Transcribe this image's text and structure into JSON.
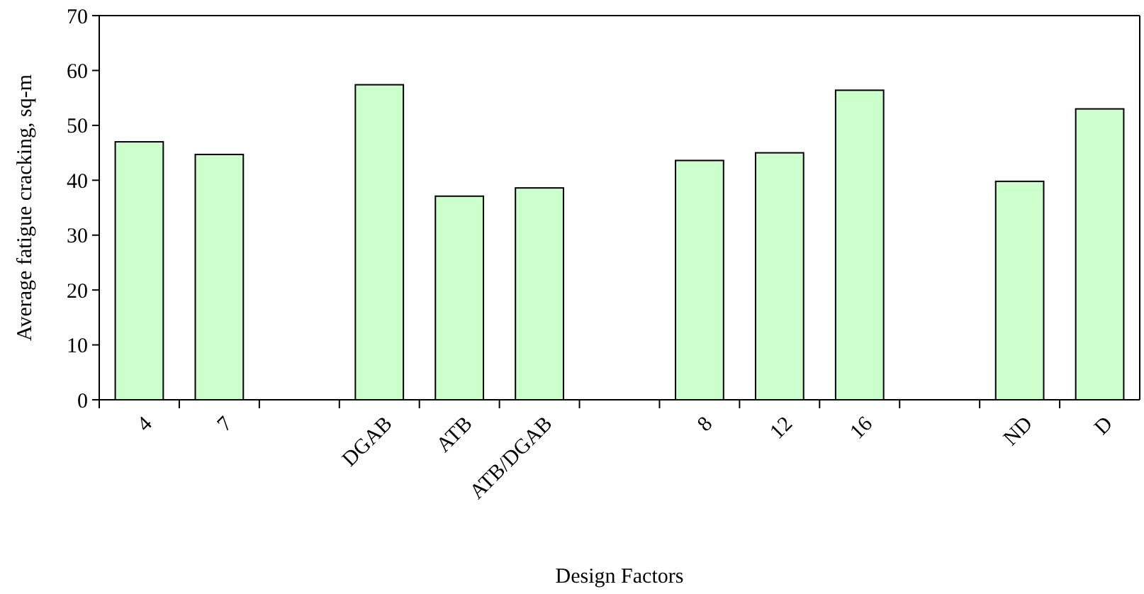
{
  "chart_data": {
    "type": "bar",
    "xlabel": "Design Factors",
    "ylabel": "Average fatigue cracking, sq-m",
    "categories": [
      "4",
      "7",
      null,
      "DGAB",
      "ATB",
      "ATB/DGAB",
      null,
      "8",
      "12",
      "16",
      null,
      "ND",
      "D"
    ],
    "values": [
      47.0,
      44.7,
      null,
      57.4,
      37.1,
      38.6,
      null,
      43.6,
      45.0,
      56.4,
      null,
      39.8,
      53.0
    ],
    "color": "#ccffcc",
    "ylim": [
      0,
      70
    ],
    "yticks": [
      0,
      10,
      20,
      30,
      40,
      50,
      60,
      70
    ],
    "grid": false
  }
}
